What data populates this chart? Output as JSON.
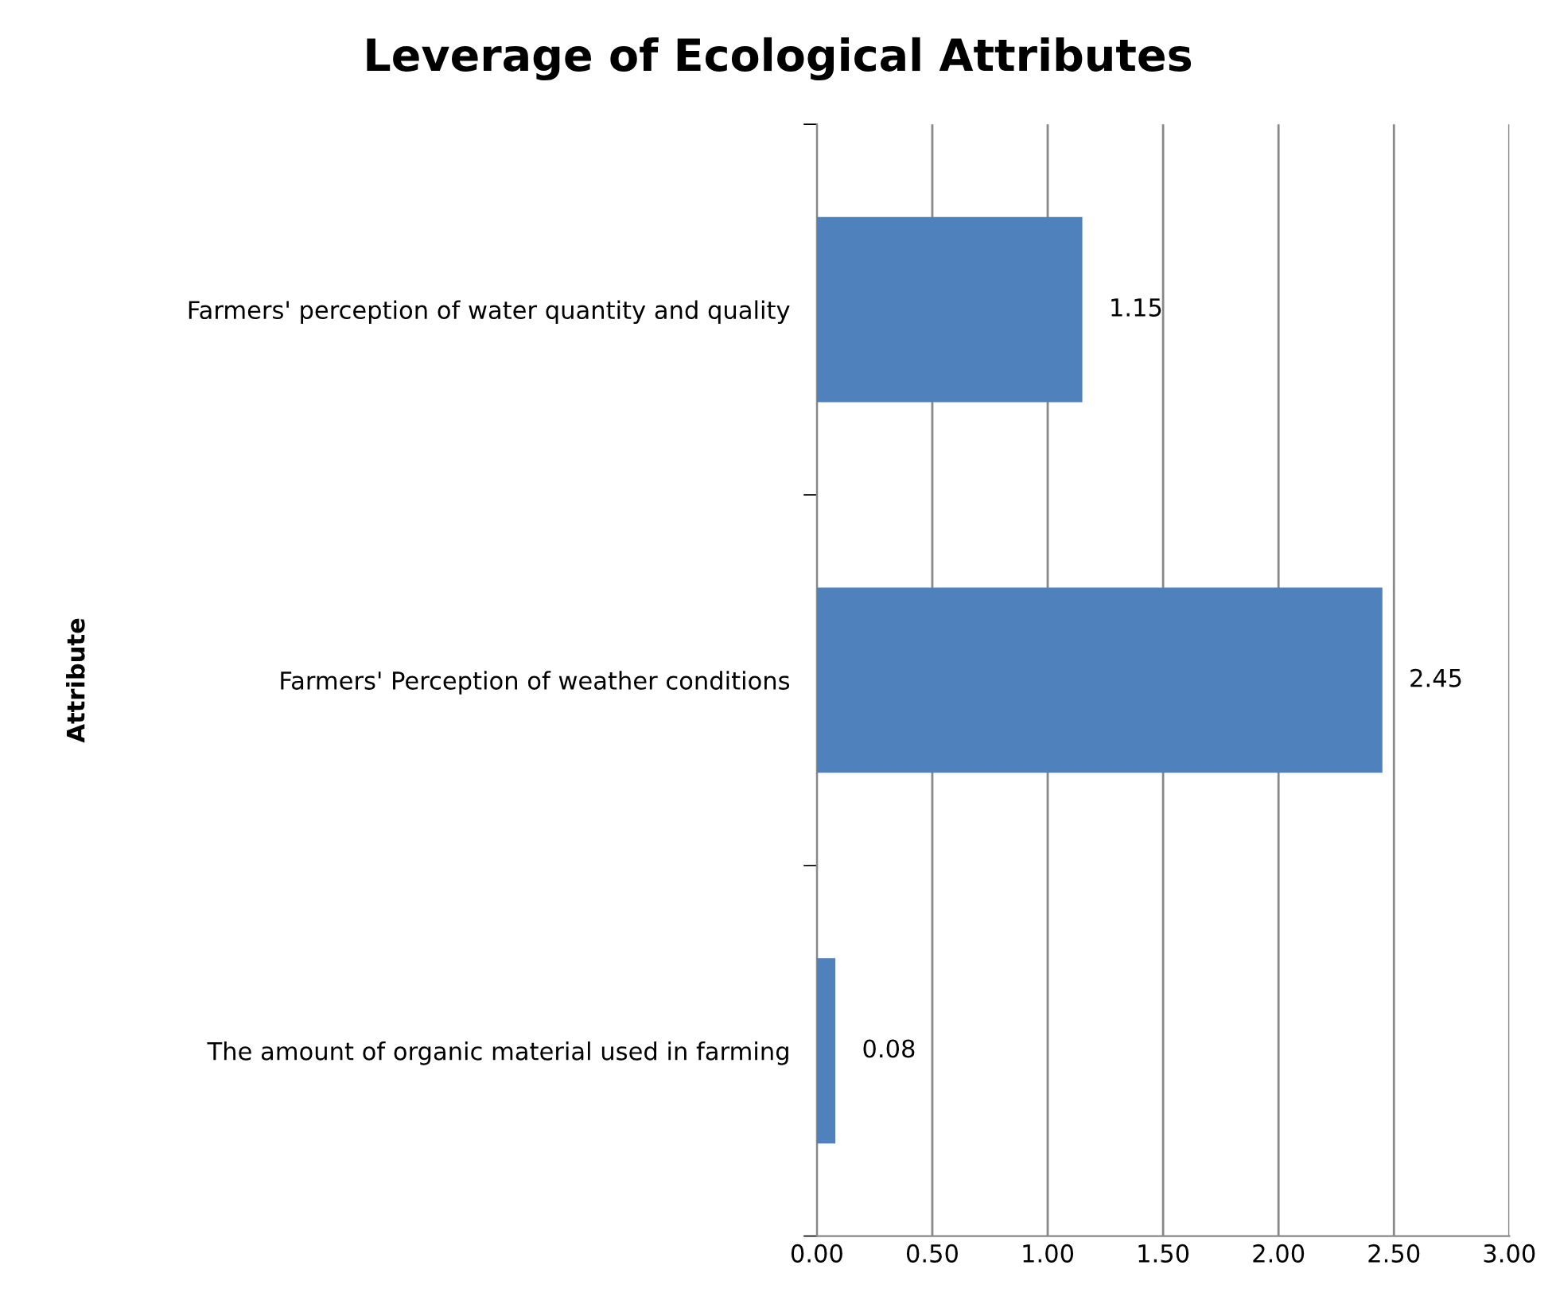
{
  "chart_data": {
    "type": "bar",
    "orientation": "horizontal",
    "title": "Leverage of Ecological Attributes",
    "ylabel": "Attribute",
    "categories": [
      "Farmers' perception of water quantity and quality",
      "Farmers' Perception of weather conditions",
      "The amount of organic material used in farming"
    ],
    "values": [
      1.15,
      2.45,
      0.08
    ],
    "color": "#4f81bd",
    "data_labels": true,
    "xlim": [
      0,
      3
    ],
    "xticks": [
      {
        "value": 0,
        "label": "0.00"
      },
      {
        "value": 0.5,
        "label": "0.50"
      },
      {
        "value": 1,
        "label": "1.00"
      },
      {
        "value": 1.5,
        "label": "1.50"
      },
      {
        "value": 2,
        "label": "2.00"
      },
      {
        "value": 2.5,
        "label": "2.50"
      },
      {
        "value": 3,
        "label": "3.00"
      }
    ],
    "grid": "x"
  }
}
